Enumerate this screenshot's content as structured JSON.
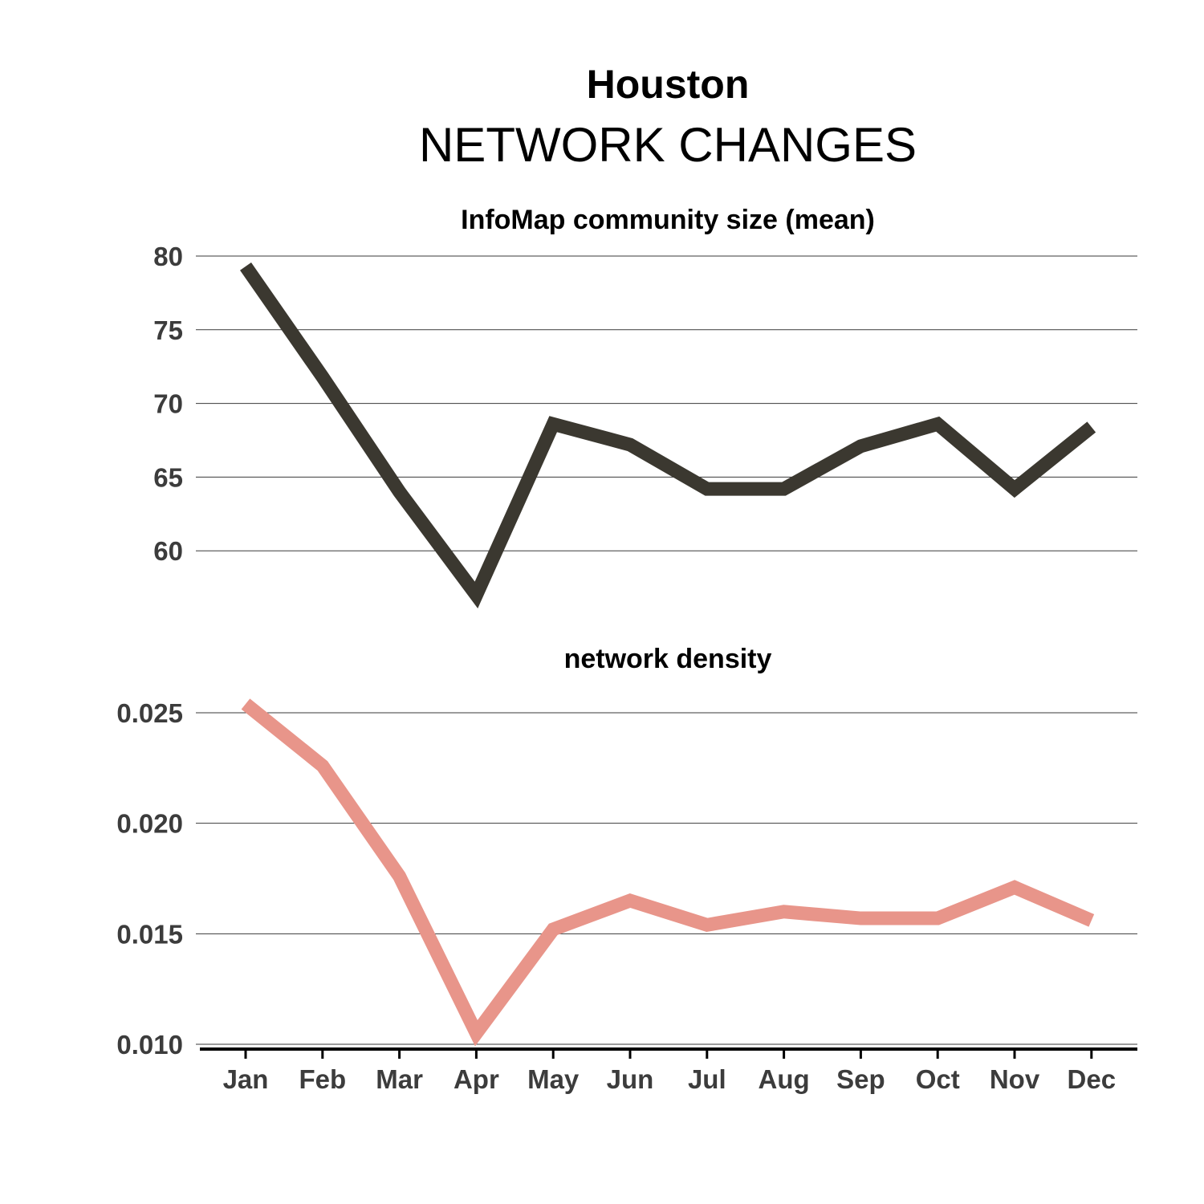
{
  "title": "Houston",
  "subtitle": "NETWORK CHANGES",
  "chart_data": [
    {
      "type": "line",
      "title": "InfoMap community size (mean)",
      "color": "#3b3830",
      "categories": [
        "Jan",
        "Feb",
        "Mar",
        "Apr",
        "May",
        "Jun",
        "Jul",
        "Aug",
        "Sep",
        "Oct",
        "Nov",
        "Dec"
      ],
      "values": [
        79.3,
        71.8,
        64.0,
        57.0,
        68.6,
        67.2,
        64.2,
        64.2,
        67.1,
        68.6,
        64.2,
        68.4
      ],
      "yticks": [
        60,
        65,
        70,
        75,
        80
      ],
      "ytick_labels": [
        "60",
        "65",
        "70",
        "75",
        "80"
      ],
      "ylim": [
        55,
        80
      ],
      "grid": true
    },
    {
      "type": "line",
      "title": "network density",
      "color": "#e8958a",
      "categories": [
        "Jan",
        "Feb",
        "Mar",
        "Apr",
        "May",
        "Jun",
        "Jul",
        "Aug",
        "Sep",
        "Oct",
        "Nov",
        "Dec"
      ],
      "values": [
        0.0254,
        0.0226,
        0.0176,
        0.0105,
        0.0152,
        0.0165,
        0.0154,
        0.016,
        0.0157,
        0.0157,
        0.0171,
        0.0156
      ],
      "yticks": [
        0.01,
        0.015,
        0.02,
        0.025
      ],
      "ytick_labels": [
        "0.010",
        "0.015",
        "0.020",
        "0.025"
      ],
      "ylim": [
        0.01,
        0.025
      ],
      "grid": true
    }
  ]
}
